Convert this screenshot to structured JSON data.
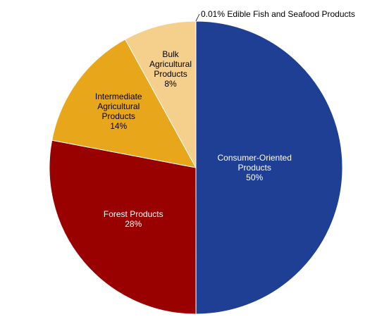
{
  "chart_data": {
    "type": "pie",
    "categories": [
      "Consumer-Oriented Products",
      "Forest Products",
      "Intermediate Agricultural Products",
      "Bulk Agricultural Products",
      "Edible Fish and Seafood Products"
    ],
    "values": [
      50,
      28,
      14,
      8,
      0.01
    ],
    "value_labels": [
      "50%",
      "28%",
      "14%",
      "8%",
      "0.01%"
    ],
    "colors": [
      "#1f3f94",
      "#990000",
      "#e8a61a",
      "#f5cf8c",
      "#7f7f7f"
    ]
  }
}
